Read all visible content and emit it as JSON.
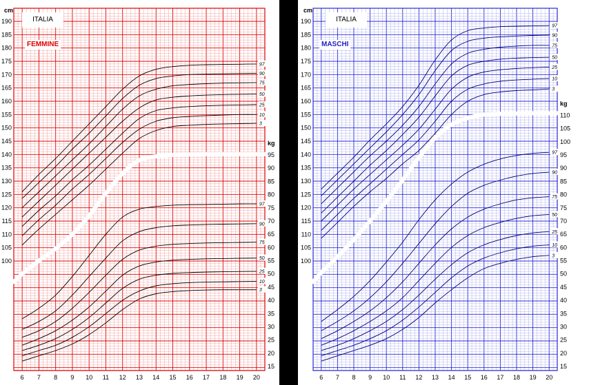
{
  "chart_data": [
    {
      "type": "line",
      "country": "ITALIA",
      "sex_label": "FEMMINE",
      "grid_color": "#e00000",
      "curve_color": "#000000",
      "x": [
        6,
        7,
        8,
        9,
        10,
        11,
        12,
        13,
        14,
        15,
        16,
        17,
        18,
        19,
        20
      ],
      "x_ticks": [
        "6",
        "7",
        "8",
        "9",
        "10",
        "11",
        "12",
        "13",
        "14",
        "15",
        "16",
        "17",
        "18",
        "19",
        "20"
      ],
      "xlim": [
        5.5,
        20.5
      ],
      "height_axis": {
        "unit": "cm",
        "ticks": [
          "100",
          "105",
          "110",
          "115",
          "120",
          "125",
          "130",
          "135",
          "140",
          "145",
          "150",
          "155",
          "160",
          "165",
          "170",
          "175",
          "180",
          "185",
          "190"
        ],
        "range": [
          97,
          192
        ]
      },
      "weight_axis": {
        "unit": "kg",
        "ticks": [
          "15",
          "20",
          "25",
          "30",
          "35",
          "40",
          "45",
          "50",
          "55",
          "60",
          "65",
          "70",
          "75",
          "80",
          "85",
          "90",
          "95"
        ],
        "range": [
          15,
          96
        ]
      },
      "height_series": [
        {
          "name": "97",
          "values": [
            126,
            132.5,
            138.5,
            145,
            151.5,
            158,
            164.5,
            169.5,
            172,
            173,
            173.5,
            173.7,
            173.8,
            173.9,
            174
          ]
        },
        {
          "name": "90",
          "values": [
            123.5,
            129.5,
            135.5,
            142,
            148,
            154.5,
            161,
            166,
            168.5,
            169.5,
            170,
            170.2,
            170.3,
            170.4,
            170.5
          ]
        },
        {
          "name": "75",
          "values": [
            120,
            126,
            132,
            138,
            144,
            150.5,
            157,
            162,
            164.5,
            165.8,
            166.3,
            166.6,
            166.8,
            166.9,
            167
          ]
        },
        {
          "name": "50",
          "values": [
            116.5,
            122.5,
            128.5,
            134.5,
            140.5,
            146.5,
            152.5,
            157.5,
            160.5,
            161.5,
            162,
            162.3,
            162.5,
            162.6,
            162.7
          ]
        },
        {
          "name": "25",
          "values": [
            113,
            119,
            124.5,
            130.5,
            136,
            142,
            148,
            153.5,
            156.5,
            157.5,
            158,
            158.3,
            158.5,
            158.6,
            158.7
          ]
        },
        {
          "name": "10",
          "values": [
            109.5,
            115.5,
            121,
            127,
            132.5,
            138.5,
            144.5,
            149.5,
            152.5,
            153.8,
            154.3,
            154.6,
            154.8,
            155,
            155
          ]
        },
        {
          "name": "3",
          "values": [
            106,
            112,
            117.5,
            123,
            128.5,
            134.5,
            140.5,
            146,
            149,
            150.5,
            151,
            151.3,
            151.5,
            151.6,
            151.7
          ]
        }
      ],
      "weight_series": [
        {
          "name": "97",
          "values": [
            33,
            37,
            42,
            49,
            57,
            65,
            71.5,
            74.5,
            75.5,
            76,
            76.2,
            76.3,
            76.4,
            76.5,
            76.5
          ]
        },
        {
          "name": "90",
          "values": [
            29,
            32,
            36,
            42,
            49,
            56,
            62.5,
            66,
            67.5,
            68.2,
            68.5,
            68.7,
            68.8,
            68.9,
            69
          ]
        },
        {
          "name": "75",
          "values": [
            26,
            28.5,
            32,
            37,
            43,
            49.5,
            55.5,
            59,
            60.5,
            61.2,
            61.5,
            61.7,
            61.8,
            61.9,
            62
          ]
        },
        {
          "name": "50",
          "values": [
            23,
            25.5,
            28.5,
            32.5,
            37.5,
            43.5,
            49.5,
            53,
            54.5,
            55.2,
            55.5,
            55.7,
            55.8,
            55.9,
            56
          ]
        },
        {
          "name": "25",
          "values": [
            21,
            23,
            25.5,
            29,
            33.5,
            39,
            44.5,
            48,
            49.5,
            50.2,
            50.5,
            50.7,
            50.8,
            50.9,
            51
          ]
        },
        {
          "name": "10",
          "values": [
            19,
            21,
            23,
            26,
            30,
            35,
            40,
            43.5,
            45.5,
            46.3,
            46.7,
            46.9,
            47,
            47.1,
            47.2
          ]
        },
        {
          "name": "3",
          "values": [
            17,
            19,
            21,
            23.5,
            27,
            31.5,
            36.5,
            40.5,
            42.5,
            43.3,
            43.7,
            43.9,
            44,
            44,
            44
          ]
        }
      ],
      "white_band": {
        "axis": "weight",
        "x": [
          5.5,
          6,
          7,
          8,
          9,
          10,
          11,
          12,
          13,
          14,
          15,
          16,
          17,
          18,
          19,
          20,
          20.8
        ],
        "values": [
          47,
          50,
          55,
          59.5,
          65,
          72,
          80.5,
          88,
          93,
          94.5,
          95,
          95.2,
          95.3,
          95.3,
          95.3,
          95.3,
          95.3
        ]
      }
    },
    {
      "type": "line",
      "country": "ITALIA",
      "sex_label": "MASCHI",
      "grid_color": "#2a2ad6",
      "curve_color": "#00007a",
      "x": [
        6,
        7,
        8,
        9,
        10,
        11,
        12,
        13,
        14,
        15,
        16,
        17,
        18,
        19,
        20
      ],
      "x_ticks": [
        "6",
        "7",
        "8",
        "9",
        "10",
        "11",
        "12",
        "13",
        "14",
        "15",
        "16",
        "17",
        "18",
        "19",
        "20"
      ],
      "xlim": [
        5.5,
        20.5
      ],
      "height_axis": {
        "unit": "cm",
        "ticks": [
          "100",
          "105",
          "110",
          "115",
          "120",
          "125",
          "130",
          "135",
          "140",
          "145",
          "150",
          "155",
          "160",
          "165",
          "170",
          "175",
          "180",
          "185",
          "190"
        ],
        "range": [
          97,
          192
        ]
      },
      "weight_axis": {
        "unit": "kg",
        "ticks": [
          "15",
          "20",
          "25",
          "30",
          "35",
          "40",
          "45",
          "50",
          "55",
          "60",
          "65",
          "70",
          "75",
          "80",
          "85",
          "90",
          "95",
          "100",
          "105",
          "110"
        ],
        "range": [
          15,
          111
        ]
      },
      "height_series": [
        {
          "name": "97",
          "values": [
            127,
            133,
            139,
            145.5,
            151.5,
            158,
            166,
            175.5,
            183,
            186.5,
            187.5,
            188,
            188.2,
            188.3,
            188.4
          ]
        },
        {
          "name": "90",
          "values": [
            124.5,
            130.5,
            136.5,
            142.5,
            148.5,
            155,
            162.5,
            171.5,
            179,
            182.5,
            183.7,
            184.2,
            184.5,
            184.7,
            184.8
          ]
        },
        {
          "name": "75",
          "values": [
            121.5,
            127.5,
            133.5,
            139.5,
            145,
            151,
            158,
            166.5,
            174,
            178,
            179.5,
            180.3,
            180.7,
            181,
            181
          ]
        },
        {
          "name": "50",
          "values": [
            118,
            124,
            130,
            136,
            141.5,
            147.5,
            154,
            162,
            169.5,
            173.5,
            175,
            175.8,
            176.2,
            176.4,
            176.5
          ]
        },
        {
          "name": "25",
          "values": [
            115,
            121,
            127,
            132.5,
            138,
            143.5,
            149.5,
            157,
            164.5,
            169,
            171,
            171.8,
            172.3,
            172.6,
            172.8
          ]
        },
        {
          "name": "10",
          "values": [
            111.5,
            117.5,
            123.5,
            129,
            134.5,
            140,
            145.5,
            152.5,
            160,
            164.5,
            166.5,
            167.5,
            168,
            168.3,
            168.5
          ]
        },
        {
          "name": "3",
          "values": [
            108.5,
            114.5,
            120.5,
            126,
            131,
            136.5,
            141.5,
            148,
            155,
            160,
            162.5,
            163.5,
            164,
            164.3,
            164.6
          ]
        }
      ],
      "weight_series": [
        {
          "name": "97",
          "values": [
            32,
            36.5,
            41.5,
            47.5,
            54.5,
            62,
            70.5,
            78,
            84,
            88.5,
            91.5,
            93.5,
            94.8,
            95.6,
            96
          ]
        },
        {
          "name": "90",
          "values": [
            28.5,
            32,
            36,
            41,
            47,
            54,
            61.5,
            69,
            75.5,
            80.5,
            83.5,
            85.5,
            87,
            88,
            88.5
          ]
        },
        {
          "name": "75",
          "values": [
            25.5,
            28.5,
            32,
            36,
            41,
            47,
            54,
            61,
            67,
            71.5,
            74.5,
            76.5,
            78,
            78.8,
            79.2
          ]
        },
        {
          "name": "50",
          "values": [
            23,
            25.5,
            28.5,
            32,
            36,
            41,
            47.5,
            54,
            60,
            64.5,
            67.5,
            69.5,
            71,
            72,
            72.5
          ]
        },
        {
          "name": "25",
          "values": [
            21,
            23,
            25.5,
            28.5,
            32,
            36.5,
            42,
            48,
            53.5,
            58,
            61,
            63,
            64.5,
            65.5,
            66
          ]
        },
        {
          "name": "10",
          "values": [
            19,
            21,
            23,
            25.5,
            28.5,
            32.5,
            37.5,
            43,
            48.5,
            53,
            56,
            58,
            59.5,
            60.5,
            61
          ]
        },
        {
          "name": "3",
          "values": [
            17,
            19,
            21,
            23,
            25.5,
            29,
            33.5,
            39,
            44,
            48.5,
            52,
            54,
            55.5,
            56.5,
            57
          ]
        }
      ],
      "white_band": {
        "axis": "weight",
        "x": [
          5.5,
          6,
          7,
          8,
          9,
          10,
          11,
          12,
          13,
          14,
          15,
          16,
          17,
          18,
          19,
          20,
          20.8
        ],
        "values": [
          47,
          50.5,
          56.5,
          63,
          70,
          77.5,
          85.5,
          94,
          101.5,
          106.5,
          109,
          110.3,
          110.6,
          110.7,
          110.8,
          110.8,
          110.8
        ]
      }
    }
  ]
}
